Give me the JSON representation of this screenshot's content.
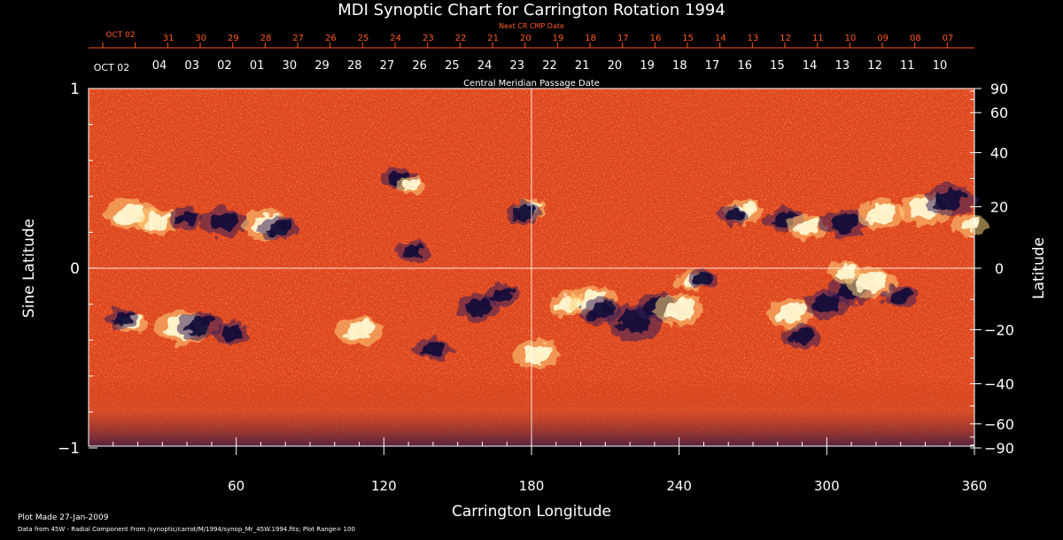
{
  "title": "MDI Synoptic Chart for Carrington Rotation 1994",
  "x_axis": {
    "label": "Carrington Longitude",
    "range": [
      0,
      360
    ],
    "ticks": [
      "60",
      "120",
      "180",
      "240",
      "300",
      "360"
    ]
  },
  "left_axis": {
    "label": "Sine Latitude",
    "range": [
      -1,
      1
    ],
    "ticks": [
      "1",
      "0",
      "−1"
    ]
  },
  "right_axis": {
    "label": "Latitude",
    "ticks": [
      {
        "value": 90,
        "text": "90"
      },
      {
        "value": 60,
        "text": "60"
      },
      {
        "value": 40,
        "text": "40"
      },
      {
        "value": 20,
        "text": "20"
      },
      {
        "value": 0,
        "text": "0"
      },
      {
        "value": -20,
        "text": "−20"
      },
      {
        "value": -40,
        "text": "−40"
      },
      {
        "value": -60,
        "text": "−60"
      },
      {
        "value": -90,
        "text": "−90"
      }
    ]
  },
  "top_axis": {
    "next_cr_label": "Next CR CMP Date",
    "next_cr_first": "OCT 02",
    "next_cr_dates": [
      "31",
      "30",
      "29",
      "28",
      "27",
      "26",
      "25",
      "24",
      "23",
      "22",
      "21",
      "20",
      "19",
      "18",
      "17",
      "16",
      "15",
      "14",
      "13",
      "12",
      "11",
      "10",
      "09",
      "08",
      "07"
    ],
    "cmp_label": "Central Meridian Passage Date",
    "cmp_first": "OCT 02",
    "cmp_dates": [
      "04",
      "03",
      "02",
      "01",
      "30",
      "29",
      "28",
      "27",
      "26",
      "25",
      "24",
      "23",
      "22",
      "21",
      "20",
      "19",
      "18",
      "17",
      "16",
      "15",
      "14",
      "13",
      "12",
      "11",
      "10"
    ]
  },
  "footer": {
    "plot_made": "Plot Made 27-Jan-2009",
    "data_from": "Data from 45W - Radial Component From /synoptic/carrot/M/1994/synop_Mr_45W.1994.fits; Plot Range=  100"
  },
  "colors": {
    "background": "#000000",
    "field_base": "#e0441a",
    "positive_flux": "#fff6d0",
    "negative_flux": "#14103a",
    "date_labels": "#ff5a1e"
  },
  "regions": [
    {
      "lon": 17,
      "sinlat": 0.3,
      "polarity": "positive",
      "scale": 1.3
    },
    {
      "lon": 28,
      "sinlat": 0.26,
      "polarity": "positive",
      "scale": 1.0
    },
    {
      "lon": 40,
      "sinlat": 0.28,
      "polarity": "negative",
      "scale": 0.9
    },
    {
      "lon": 55,
      "sinlat": 0.26,
      "polarity": "negative",
      "scale": 1.2
    },
    {
      "lon": 72,
      "sinlat": 0.24,
      "polarity": "positive",
      "scale": 1.2
    },
    {
      "lon": 77,
      "sinlat": 0.22,
      "polarity": "negative",
      "scale": 1.0
    },
    {
      "lon": 126,
      "sinlat": 0.5,
      "polarity": "negative",
      "scale": 0.9
    },
    {
      "lon": 131,
      "sinlat": 0.46,
      "polarity": "positive",
      "scale": 0.7
    },
    {
      "lon": 132,
      "sinlat": 0.09,
      "polarity": "negative",
      "scale": 0.9
    },
    {
      "lon": 180,
      "sinlat": 0.33,
      "polarity": "positive",
      "scale": 0.8
    },
    {
      "lon": 177,
      "sinlat": 0.31,
      "polarity": "negative",
      "scale": 0.9
    },
    {
      "lon": 266,
      "sinlat": 0.31,
      "polarity": "positive",
      "scale": 1.0
    },
    {
      "lon": 262,
      "sinlat": 0.29,
      "polarity": "negative",
      "scale": 0.8
    },
    {
      "lon": 283,
      "sinlat": 0.27,
      "polarity": "negative",
      "scale": 1.0
    },
    {
      "lon": 292,
      "sinlat": 0.23,
      "polarity": "positive",
      "scale": 1.0
    },
    {
      "lon": 307,
      "sinlat": 0.25,
      "polarity": "negative",
      "scale": 1.2
    },
    {
      "lon": 322,
      "sinlat": 0.3,
      "polarity": "positive",
      "scale": 1.2
    },
    {
      "lon": 340,
      "sinlat": 0.33,
      "polarity": "positive",
      "scale": 1.3
    },
    {
      "lon": 350,
      "sinlat": 0.38,
      "polarity": "negative",
      "scale": 1.3
    },
    {
      "lon": 358,
      "sinlat": 0.24,
      "polarity": "positive",
      "scale": 0.9
    },
    {
      "lon": 18,
      "sinlat": -0.3,
      "polarity": "positive",
      "scale": 0.8
    },
    {
      "lon": 14,
      "sinlat": -0.28,
      "polarity": "negative",
      "scale": 0.8
    },
    {
      "lon": 38,
      "sinlat": -0.33,
      "polarity": "positive",
      "scale": 1.4
    },
    {
      "lon": 45,
      "sinlat": -0.32,
      "polarity": "negative",
      "scale": 1.1
    },
    {
      "lon": 58,
      "sinlat": -0.36,
      "polarity": "negative",
      "scale": 0.9
    },
    {
      "lon": 110,
      "sinlat": -0.35,
      "polarity": "positive",
      "scale": 1.2
    },
    {
      "lon": 140,
      "sinlat": -0.45,
      "polarity": "negative",
      "scale": 1.0
    },
    {
      "lon": 158,
      "sinlat": -0.22,
      "polarity": "negative",
      "scale": 1.1
    },
    {
      "lon": 168,
      "sinlat": -0.15,
      "polarity": "negative",
      "scale": 0.9
    },
    {
      "lon": 182,
      "sinlat": -0.48,
      "polarity": "positive",
      "scale": 1.2
    },
    {
      "lon": 195,
      "sinlat": -0.2,
      "polarity": "positive",
      "scale": 1.0
    },
    {
      "lon": 205,
      "sinlat": -0.18,
      "polarity": "positive",
      "scale": 1.2
    },
    {
      "lon": 208,
      "sinlat": -0.24,
      "polarity": "negative",
      "scale": 1.1
    },
    {
      "lon": 222,
      "sinlat": -0.3,
      "polarity": "negative",
      "scale": 1.4
    },
    {
      "lon": 232,
      "sinlat": -0.22,
      "polarity": "negative",
      "scale": 1.2
    },
    {
      "lon": 240,
      "sinlat": -0.23,
      "polarity": "positive",
      "scale": 1.3
    },
    {
      "lon": 245,
      "sinlat": -0.07,
      "polarity": "positive",
      "scale": 0.8
    },
    {
      "lon": 250,
      "sinlat": -0.06,
      "polarity": "negative",
      "scale": 0.8
    },
    {
      "lon": 285,
      "sinlat": -0.25,
      "polarity": "positive",
      "scale": 1.2
    },
    {
      "lon": 290,
      "sinlat": -0.38,
      "polarity": "negative",
      "scale": 1.0
    },
    {
      "lon": 300,
      "sinlat": -0.2,
      "polarity": "negative",
      "scale": 1.1
    },
    {
      "lon": 310,
      "sinlat": -0.12,
      "polarity": "negative",
      "scale": 1.2
    },
    {
      "lon": 318,
      "sinlat": -0.08,
      "polarity": "positive",
      "scale": 1.3
    },
    {
      "lon": 308,
      "sinlat": -0.02,
      "polarity": "positive",
      "scale": 0.9
    },
    {
      "lon": 330,
      "sinlat": -0.16,
      "polarity": "negative",
      "scale": 0.9
    }
  ]
}
